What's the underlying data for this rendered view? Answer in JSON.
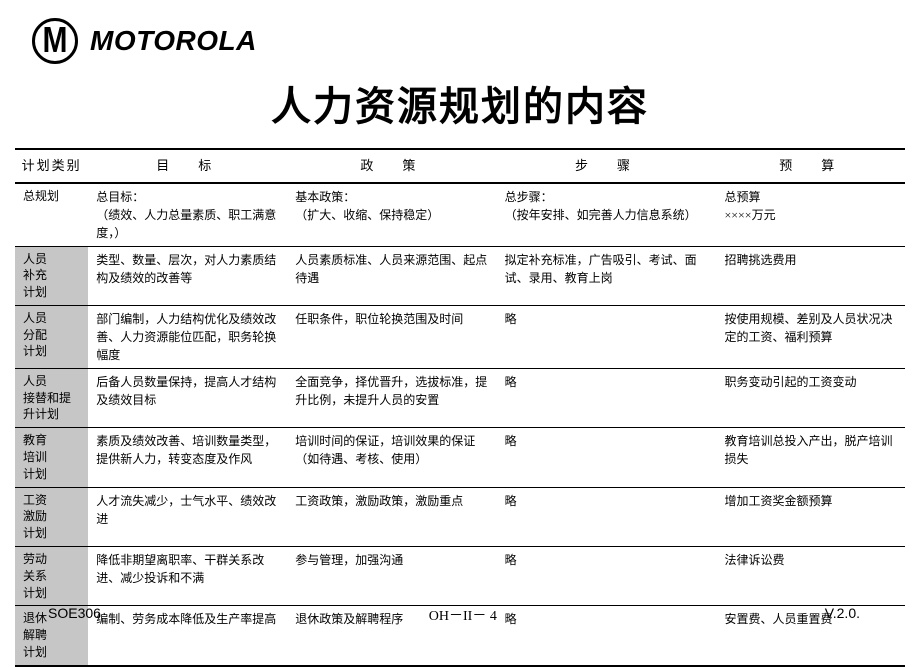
{
  "brand": "MOTOROLA",
  "title": "人力资源规划的内容",
  "headers": [
    "计划类别",
    "目　标",
    "政　策",
    "步　骤",
    "预　算"
  ],
  "omit_text": "略",
  "colors": {
    "cat_bg": "#c6c6c6",
    "border": "#000000",
    "bg": "#ffffff"
  },
  "rows": [
    {
      "cat": "总规划",
      "cat_shaded": false,
      "goal": "总目标：\n（绩效、人力总量素质、职工满意度，）",
      "policy": "基本政策：\n（扩大、收缩、保持稳定）",
      "step": "总步骤：\n（按年安排、如完善人力信息系统）",
      "budget": "总预算\n××××万元"
    },
    {
      "cat": "人员补充计划",
      "cat_shaded": true,
      "goal": "类型、数量、层次，对人力素质结构及绩效的改善等",
      "policy": "人员素质标准、人员来源范围、起点待遇",
      "step": "拟定补充标准，广告吸引、考试、面试、录用、教育上岗",
      "budget": "招聘挑选费用"
    },
    {
      "cat": "人员分配计划",
      "cat_shaded": true,
      "goal": "部门编制，人力结构优化及绩效改善、人力资源能位匹配，职务轮换幅度",
      "policy": "任职条件，职位轮换范围及时间",
      "step": "OMIT",
      "budget": "按使用规模、差别及人员状况决定的工资、福利预算"
    },
    {
      "cat": "人员接替和提升计划",
      "cat_shaded": true,
      "goal": "后备人员数量保持，提高人才结构及绩效目标",
      "policy": "全面竞争，择优晋升，选拔标准，提升比例，未提升人员的安置",
      "step": "OMIT",
      "budget": "职务变动引起的工资变动"
    },
    {
      "cat": "教育培训计划",
      "cat_shaded": true,
      "goal": "素质及绩效改善、培训数量类型，提供新人力，转变态度及作风",
      "policy": "培训时间的保证，培训效果的保证（如待遇、考核、使用）",
      "step": "OMIT",
      "budget": "教育培训总投入产出，脱产培训损失"
    },
    {
      "cat": "工资激励计划",
      "cat_shaded": true,
      "goal": "人才流失减少，士气水平、绩效改进",
      "policy": "工资政策，激励政策，激励重点",
      "step": "OMIT",
      "budget": "增加工资奖金额预算"
    },
    {
      "cat": "劳动关系计划",
      "cat_shaded": true,
      "goal": "降低非期望离职率、干群关系改进、减少投诉和不满",
      "policy": "参与管理，加强沟通",
      "step": "OMIT",
      "budget": "法律诉讼费"
    },
    {
      "cat": "退休解聘计划",
      "cat_shaded": true,
      "goal": "编制、劳务成本降低及生产率提高",
      "policy": "退休政策及解聘程序",
      "step": "OMIT",
      "budget": "安置费、人员重置费"
    }
  ],
  "fonts": {
    "title_size": 40,
    "body_size": 12,
    "header_size": 13
  },
  "footer": {
    "left": "SOE306",
    "center": "OH－II－ 4",
    "right": "V.2.0."
  }
}
